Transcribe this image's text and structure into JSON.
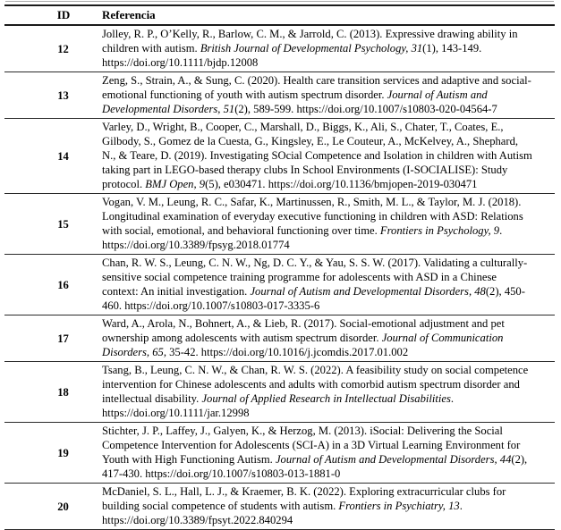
{
  "colors": {
    "background": "#ffffff",
    "text": "#000000",
    "table_border": "#1a1a1a",
    "top_divider": "#a9a9a9"
  },
  "table": {
    "headers": {
      "id": "ID",
      "reference": "Referencia"
    },
    "rows": [
      {
        "id": "12",
        "runs": [
          {
            "t": "Jolley, R. P., O’Kelly, R., Barlow, C. M., & Jarrold, C. (2013). Expressive drawing ability in\nchildren with autism. ",
            "i": false
          },
          {
            "t": "British Journal of Developmental Psychology, 31",
            "i": true
          },
          {
            "t": "(1), 143-149.\nhttps://doi.org/10.1111/bjdp.12008",
            "i": false
          }
        ]
      },
      {
        "id": "13",
        "runs": [
          {
            "t": "Zeng, S., Strain, A., & Sung, C. (2020). Health care transition services and adaptive and social-\nemotional functioning of youth with autism spectrum disorder. ",
            "i": false
          },
          {
            "t": "Journal of Autism and\nDevelopmental Disorders, 51",
            "i": true
          },
          {
            "t": "(2), 589-599. https://doi.org/10.1007/s10803-020-04564-7",
            "i": false
          }
        ]
      },
      {
        "id": "14",
        "runs": [
          {
            "t": "Varley, D., Wright, B., Cooper, C., Marshall, D., Biggs, K., Ali, S., Chater, T., Coates, E.,\nGilbody, S., Gomez de la Cuesta, G., Kingsley, E., Le Couteur, A., McKelvey, A., Shephard,\nN., & Teare, D. (2019). Investigating SOcial Competence and Isolation in children with Autism\ntaking part in LEGO-based therapy clubs In School Environments (I-SOCIALISE): Study\nprotocol. ",
            "i": false
          },
          {
            "t": "BMJ Open, 9",
            "i": true
          },
          {
            "t": "(5), e030471. https://doi.org/10.1136/bmjopen-2019-030471",
            "i": false
          }
        ]
      },
      {
        "id": "15",
        "runs": [
          {
            "t": "Vogan, V. M., Leung, R. C., Safar, K., Martinussen, R., Smith, M. L., & Taylor, M. J. (2018).\nLongitudinal examination of everyday executive functioning in children with ASD: Relations\nwith social, emotional, and behavioral functioning over time. ",
            "i": false
          },
          {
            "t": "Frontiers in Psychology, 9",
            "i": true
          },
          {
            "t": ".\nhttps://doi.org/10.3389/fpsyg.2018.01774",
            "i": false
          }
        ]
      },
      {
        "id": "16",
        "runs": [
          {
            "t": "Chan, R. W. S., Leung, C. N. W., Ng, D. C. Y., & Yau, S. S. W. (2017). Validating a culturally-\nsensitive social competence training programme for adolescents with ASD in a Chinese\ncontext: An initial investigation. ",
            "i": false
          },
          {
            "t": "Journal of Autism and Developmental Disorders, 48",
            "i": true
          },
          {
            "t": "(2), 450-\n460. https://doi.org/10.1007/s10803-017-3335-6",
            "i": false
          }
        ]
      },
      {
        "id": "17",
        "runs": [
          {
            "t": "Ward, A., Arola, N., Bohnert, A., & Lieb, R. (2017). Social-emotional adjustment and pet\nownership among adolescents with autism spectrum disorder. ",
            "i": false
          },
          {
            "t": "Journal of Communication\nDisorders, 65",
            "i": true
          },
          {
            "t": ", 35-42. https://doi.org/10.1016/j.jcomdis.2017.01.002",
            "i": false
          }
        ]
      },
      {
        "id": "18",
        "runs": [
          {
            "t": "Tsang, B., Leung, C. N. W., & Chan, R. W. S. (2022). A feasibility study on social competence\nintervention for Chinese adolescents and adults with comorbid autism spectrum disorder and\nintellectual disability. ",
            "i": false
          },
          {
            "t": "Journal of Applied Research in Intellectual Disabilities",
            "i": true
          },
          {
            "t": ".\nhttps://doi.org/10.1111/jar.12998",
            "i": false
          }
        ]
      },
      {
        "id": "19",
        "runs": [
          {
            "t": "Stichter, J. P., Laffey, J., Galyen, K., & Herzog, M. (2013). iSocial: Delivering the Social\nCompetence Intervention for Adolescents (SCI-A) in a 3D Virtual Learning Environment for\nYouth with High Functioning Autism. ",
            "i": false
          },
          {
            "t": "Journal of Autism and Developmental Disorders, 44",
            "i": true
          },
          {
            "t": "(2),\n417-430. https://doi.org/10.1007/s10803-013-1881-0",
            "i": false
          }
        ]
      },
      {
        "id": "20",
        "runs": [
          {
            "t": "McDaniel, S. L., Hall, L. J., & Kraemer, B. K. (2022). Exploring extracurricular clubs for\nbuilding social competence of students with autism. ",
            "i": false
          },
          {
            "t": "Frontiers in Psychiatry, 13",
            "i": true
          },
          {
            "t": ".\nhttps://doi.org/10.3389/fpsyt.2022.840294",
            "i": false
          }
        ]
      }
    ]
  }
}
